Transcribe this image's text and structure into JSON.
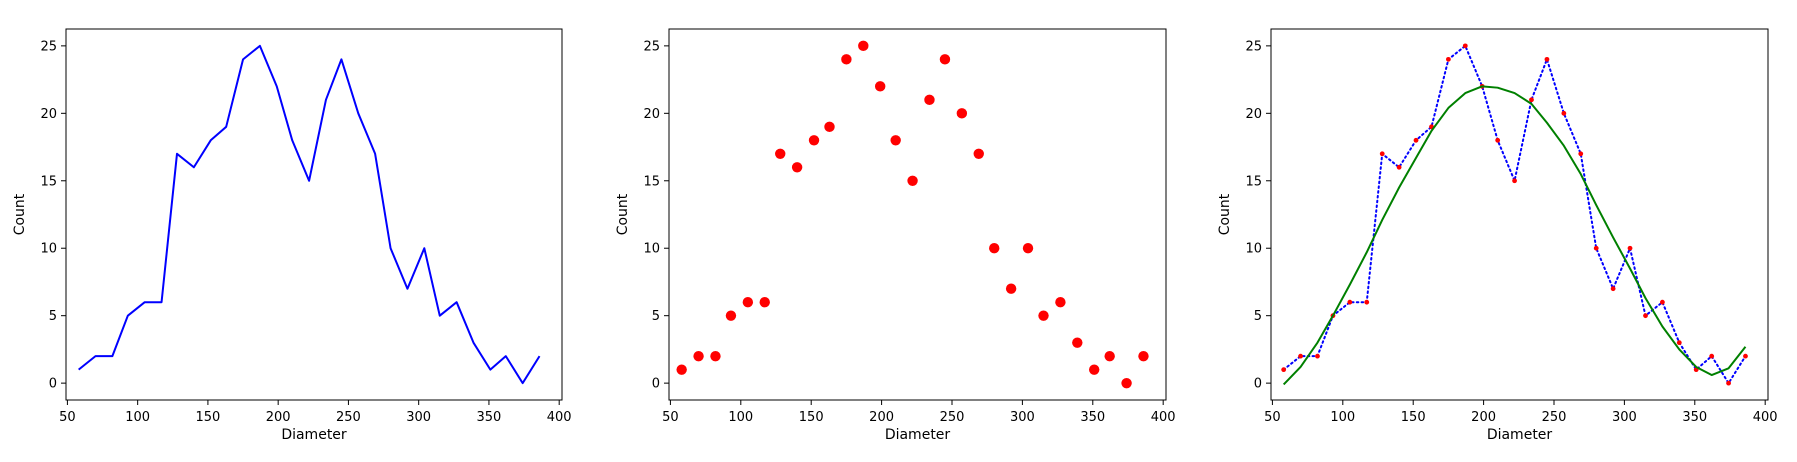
{
  "chart_data": [
    {
      "type": "line",
      "title": "",
      "xlabel": "Diameter",
      "ylabel": "Count",
      "xlim": [
        49,
        402
      ],
      "ylim": [
        -1.25,
        26.25
      ],
      "xticks": [
        50,
        100,
        150,
        200,
        250,
        300,
        350,
        400
      ],
      "yticks": [
        0,
        5,
        10,
        15,
        20,
        25
      ],
      "grid": false,
      "series": [
        {
          "style": "solid",
          "color": "#0000ff",
          "x": [
            58,
            70,
            82,
            93,
            105,
            117,
            128,
            140,
            152,
            163,
            175,
            187,
            199,
            210,
            222,
            234,
            245,
            257,
            269,
            280,
            292,
            304,
            315,
            327,
            339,
            351,
            362,
            374,
            386
          ],
          "y": [
            1,
            2,
            2,
            5,
            6,
            6,
            17,
            16,
            18,
            19,
            24,
            25,
            22,
            18,
            15,
            21,
            24,
            20,
            17,
            10,
            7,
            10,
            5,
            6,
            3,
            1,
            2,
            0,
            2
          ]
        }
      ]
    },
    {
      "type": "scatter",
      "title": "",
      "xlabel": "Diameter",
      "ylabel": "Count",
      "xlim": [
        49,
        402
      ],
      "ylim": [
        -1.25,
        26.25
      ],
      "xticks": [
        50,
        100,
        150,
        200,
        250,
        300,
        350,
        400
      ],
      "yticks": [
        0,
        5,
        10,
        15,
        20,
        25
      ],
      "grid": false,
      "series": [
        {
          "marker": "circle",
          "color": "#ff0000",
          "x": [
            58,
            70,
            82,
            93,
            105,
            117,
            128,
            140,
            152,
            163,
            175,
            187,
            199,
            210,
            222,
            234,
            245,
            257,
            269,
            280,
            292,
            304,
            315,
            327,
            339,
            351,
            362,
            374,
            386
          ],
          "y": [
            1,
            2,
            2,
            5,
            6,
            6,
            17,
            16,
            18,
            19,
            24,
            25,
            22,
            18,
            15,
            21,
            24,
            20,
            17,
            10,
            7,
            10,
            5,
            6,
            3,
            1,
            2,
            0,
            2
          ]
        }
      ]
    },
    {
      "type": "line",
      "title": "",
      "xlabel": "Diameter",
      "ylabel": "Count",
      "xlim": [
        49,
        402
      ],
      "ylim": [
        -1.25,
        26.25
      ],
      "xticks": [
        50,
        100,
        150,
        200,
        250,
        300,
        350,
        400
      ],
      "yticks": [
        0,
        5,
        10,
        15,
        20,
        25
      ],
      "grid": false,
      "series": [
        {
          "style": "dotted",
          "color": "#0000ff",
          "marker": "small-dot",
          "marker_color": "#ff0000",
          "x": [
            58,
            70,
            82,
            93,
            105,
            117,
            128,
            140,
            152,
            163,
            175,
            187,
            199,
            210,
            222,
            234,
            245,
            257,
            269,
            280,
            292,
            304,
            315,
            327,
            339,
            351,
            362,
            374,
            386
          ],
          "y": [
            1,
            2,
            2,
            5,
            6,
            6,
            17,
            16,
            18,
            19,
            24,
            25,
            22,
            18,
            15,
            21,
            24,
            20,
            17,
            10,
            7,
            10,
            5,
            6,
            3,
            1,
            2,
            0,
            2
          ]
        },
        {
          "style": "solid",
          "color": "#008000",
          "x": [
            58,
            70,
            82,
            93,
            105,
            117,
            128,
            140,
            152,
            163,
            175,
            187,
            199,
            210,
            222,
            234,
            245,
            257,
            269,
            280,
            292,
            304,
            315,
            327,
            339,
            351,
            362,
            374,
            386
          ],
          "y": [
            -0.1,
            1.2,
            3.0,
            5.0,
            7.3,
            9.7,
            12.1,
            14.5,
            16.7,
            18.7,
            20.4,
            21.5,
            22.0,
            21.9,
            21.5,
            20.7,
            19.3,
            17.6,
            15.5,
            13.2,
            10.8,
            8.5,
            6.3,
            4.2,
            2.5,
            1.2,
            0.6,
            1.1,
            2.7
          ]
        }
      ]
    }
  ]
}
